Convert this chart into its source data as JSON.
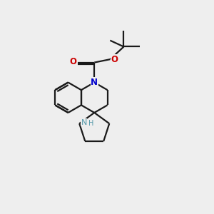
{
  "bg_color": "#eeeeee",
  "bond_color": "#1a1a1a",
  "N_color": "#0000cc",
  "O_color": "#cc0000",
  "NH_color": "#5599aa",
  "line_width": 1.6,
  "figsize": [
    3.0,
    3.0
  ],
  "dpi": 100,
  "xlim": [
    0,
    10
  ],
  "ylim": [
    0,
    10
  ]
}
